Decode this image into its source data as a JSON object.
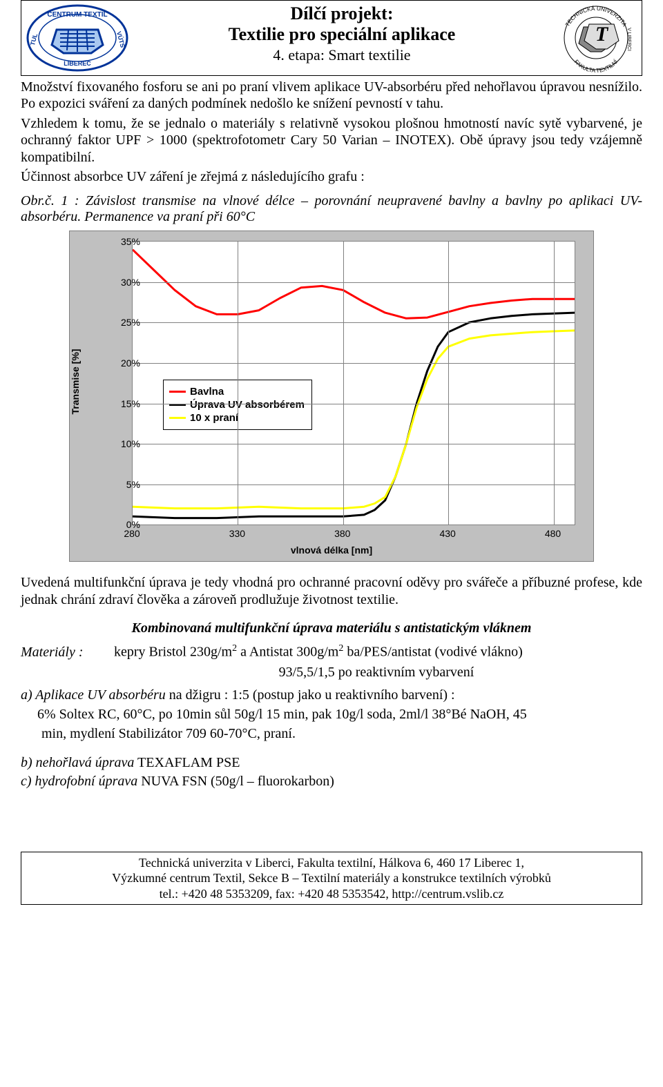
{
  "header": {
    "title1": "Dílčí projekt:",
    "title2": "Textilie pro speciální aplikace",
    "subtitle": "4. etapa: Smart textilie",
    "left_logo": {
      "top_text": "CENTRUM TEXTIL",
      "left_text": "TUL",
      "right_text": "VÚTS",
      "bottom_text": "LIBEREC",
      "border_color": "#003399",
      "text_color": "#003399"
    },
    "right_logo": {
      "top_arc": "TECHNICKÁ UNIVERZITA",
      "right_side": "V LIBERCI",
      "bottom_arc": "FAKULTA  TEXTILNÍ",
      "color": "#000000"
    }
  },
  "para1": "Množství fixovaného fosforu se ani po praní vlivem aplikace UV-absorbéru před nehořlavou úpravou nesnížilo. Po expozici sváření za daných podmínek nedošlo ke snížení pevností v tahu.",
  "para2": "Vzhledem k tomu, že se jednalo o materiály s relativně vysokou plošnou hmotností navíc sytě vybarvené, je ochranný faktor UPF > 1000 (spektrofotometr Cary 50 Varian – INOTEX). Obě úpravy jsou tedy vzájemně kompatibilní.",
  "para3": "Účinnost absorbce UV záření je zřejmá z následujícího grafu :",
  "caption": "Obr.č. 1 : Závislost transmise na vlnové délce – porovnání neupravené bavlny a bavlny po aplikaci UV- absorbéru. Permanence va praní při 60°C",
  "chart": {
    "type": "line",
    "background_color": "#c0c0c0",
    "plot_bg": "#ffffff",
    "grid_color": "#808080",
    "yticks": [
      "0%",
      "5%",
      "10%",
      "15%",
      "20%",
      "25%",
      "30%",
      "35%"
    ],
    "xticks": [
      "280",
      "330",
      "380",
      "430",
      "480"
    ],
    "xaxis": "vlnová délka [nm]",
    "yaxis": "Transmise [%]",
    "xlim": [
      280,
      490
    ],
    "ylim": [
      0,
      35
    ],
    "line_width": 3,
    "series": [
      {
        "name": "Bavlna",
        "color": "#ff0000",
        "x": [
          280,
          290,
          300,
          310,
          320,
          330,
          340,
          350,
          360,
          370,
          380,
          390,
          400,
          410,
          420,
          430,
          440,
          450,
          460,
          470,
          480,
          490
        ],
        "y": [
          34,
          31.5,
          29,
          27,
          26,
          26,
          26.5,
          28,
          29.3,
          29.5,
          29,
          27.5,
          26.2,
          25.5,
          25.6,
          26.3,
          27,
          27.4,
          27.7,
          27.9,
          27.9,
          27.9
        ]
      },
      {
        "name": "Úprava UV absorbérem",
        "color": "#000000",
        "x": [
          280,
          300,
          320,
          340,
          360,
          380,
          390,
          395,
          400,
          405,
          410,
          415,
          420,
          425,
          430,
          440,
          450,
          460,
          470,
          480,
          490
        ],
        "y": [
          1.0,
          0.8,
          0.8,
          1.0,
          1.0,
          1.0,
          1.2,
          1.8,
          3.0,
          6.0,
          10,
          15,
          19,
          22,
          23.8,
          25,
          25.5,
          25.8,
          26,
          26.1,
          26.2
        ]
      },
      {
        "name": "10 x praní",
        "color": "#ffff00",
        "x": [
          280,
          300,
          320,
          340,
          360,
          380,
          390,
          395,
          400,
          405,
          410,
          415,
          420,
          425,
          430,
          440,
          450,
          460,
          470,
          480,
          490
        ],
        "y": [
          2.2,
          2.0,
          2.0,
          2.2,
          2.0,
          2.0,
          2.2,
          2.6,
          3.4,
          6.0,
          10,
          14.5,
          18,
          20.5,
          22,
          23,
          23.4,
          23.6,
          23.8,
          23.9,
          24.0
        ]
      }
    ],
    "legend_labels": [
      "Bavlna",
      "Úprava UV absorbérem",
      "10 x praní"
    ]
  },
  "para4": "Uvedená multifunkční úprava je tedy vhodná pro ochranné pracovní oděvy pro svářeče a příbuzné profese, kde jednak chrání zdraví člověka a zároveň prodlužuje životnost textilie.",
  "section_heading": "Kombinovaná multifunkční úprava materiálu s antistatickým vláknem",
  "materials_label": "Materiály :",
  "materials_line1a": "kepry  Bristol 230g/m",
  "materials_line1b": " a Antistat 300g/m",
  "materials_line1c": " ba/PES/antistat (vodivé vlákno)",
  "materials_line2": "93/5,5/1,5 po reaktivním vybarvení",
  "item_a_lead": "a)  Aplikace UV absorbéru",
  "item_a_rest": " na džigru : 1:5  (postup jako u  reaktivního barvení) :",
  "item_a_detail1": "6% Soltex RC, 60°C, po 10min sůl 50g/l 15 min, pak 10g/l soda, 2ml/l 38°Bé NaOH, 45",
  "item_a_detail2": "min, mydlení Stabilizátor 709  60-70°C, praní.",
  "item_b_lead": "b)  nehořlavá úprava",
  "item_b_rest": " TEXAFLAM PSE",
  "item_c_lead": "c)  hydrofobní úprava",
  "item_c_rest": " NUVA FSN (50g/l – fluorokarbon)",
  "footer": {
    "line1": "Technická univerzita v Liberci, Fakulta textilní, Hálkova 6, 460 17 Liberec 1,",
    "line2": "Výzkumné centrum Textil, Sekce B – Textilní materiály a konstrukce textilních výrobků",
    "line3": "tel.: +420 48 5353209, fax: +420 48 5353542, http://centrum.vslib.cz"
  }
}
